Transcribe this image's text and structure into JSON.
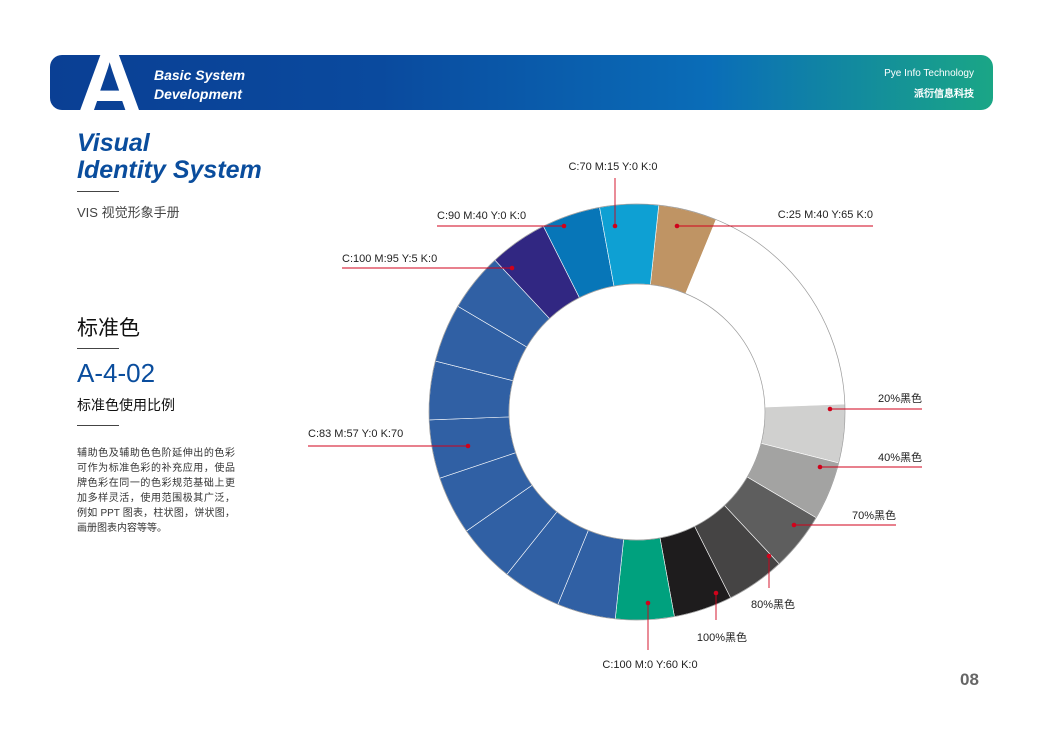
{
  "header": {
    "letter": "A",
    "section_line1": "Basic System",
    "section_line2": "Development",
    "company_en": "Pye Info Technology",
    "company_cn": "派衍信息科技"
  },
  "sidebar": {
    "title_line1": "Visual",
    "title_line2": "Identity System",
    "subtitle": "VIS 视觉形象手册",
    "category": "标准色",
    "code": "A-4-02",
    "code_subtitle": "标准色使用比例",
    "description": "辅助色及辅助色色阶延伸出的色彩可作为标准色彩的补充应用，使品牌色彩在同一的色彩规范基础上更加多样灵活，使用范围极其广泛，例如 PPT 图表，柱状图，饼状图，画册图表内容等等。"
  },
  "page_number": "08",
  "chart_data": {
    "type": "pie",
    "segments": [
      {
        "label": "C:25  M:40  Y:65  K:0",
        "color": "#bf9464",
        "count": 1
      },
      {
        "label": "",
        "color": "#ffffff",
        "count": 4
      },
      {
        "label": "20%黑色",
        "color": "#d0d0cf",
        "count": 1
      },
      {
        "label": "40%黑色",
        "color": "#a3a3a2",
        "count": 1
      },
      {
        "label": "70%黑色",
        "color": "#5e5e5e",
        "count": 1
      },
      {
        "label": "80%黑色",
        "color": "#454444",
        "count": 1
      },
      {
        "label": "100%黑色",
        "color": "#1e1c1d",
        "count": 1
      },
      {
        "label": "C:100  M:0  Y:60  K:0",
        "color": "#00a17e",
        "count": 1
      },
      {
        "label": "C:83  M:57  Y:0  K:70",
        "color": "#3060a4",
        "count": 8
      },
      {
        "label": "C:100  M:95  Y:5  K:0",
        "color": "#312782",
        "count": 1
      },
      {
        "label": "C:90  M:40  Y:0  K:0",
        "color": "#0776b8",
        "count": 1
      },
      {
        "label": "C:70  M:15  Y:0  K:0",
        "color": "#0ea0d3",
        "count": 1
      }
    ],
    "marker_color": "#d0021b"
  }
}
